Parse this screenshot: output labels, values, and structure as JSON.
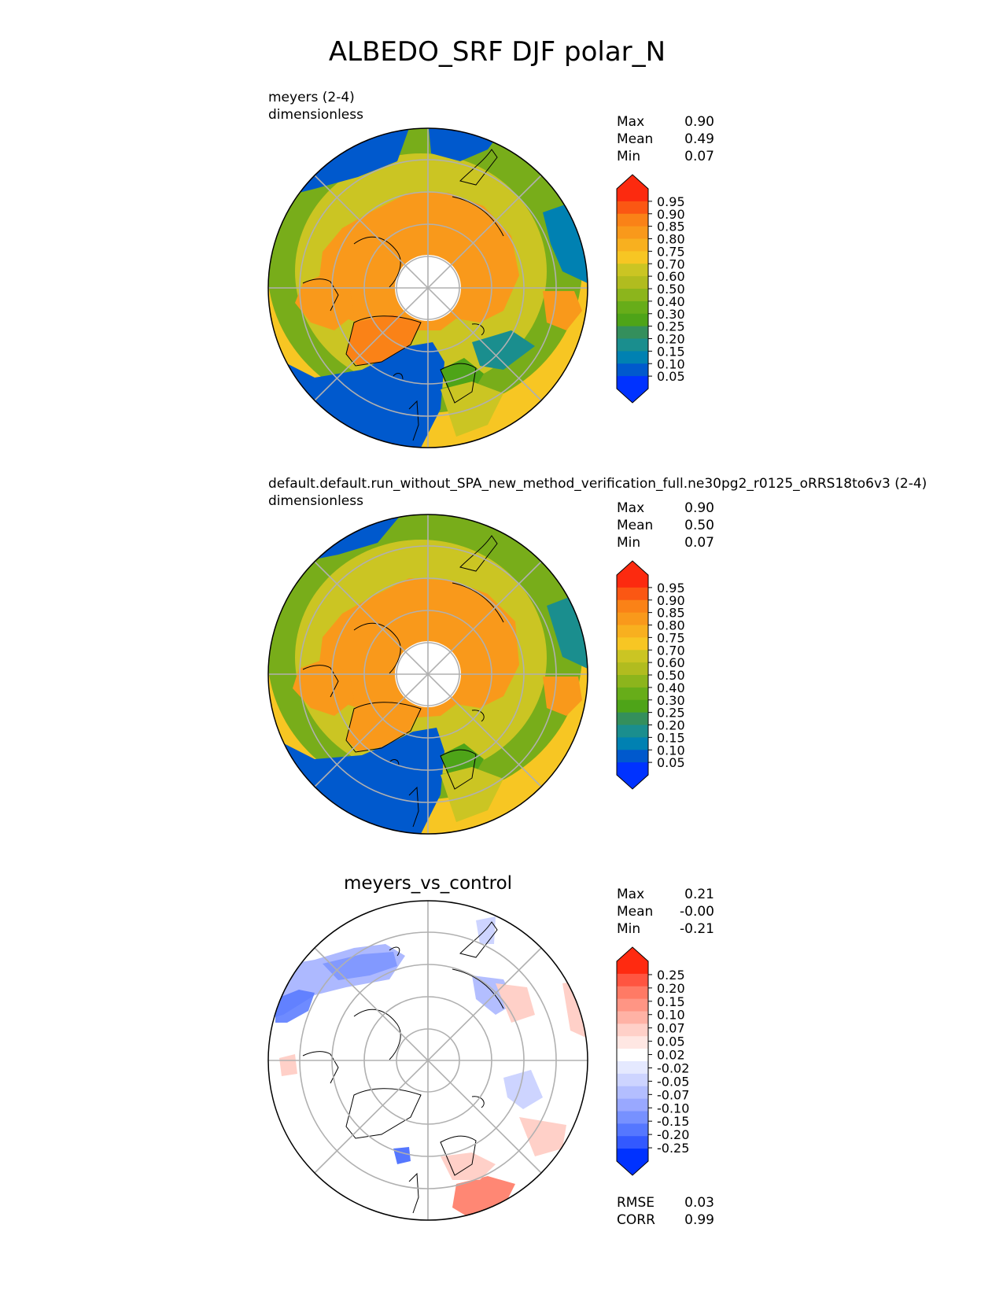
{
  "figure": {
    "title": "ALBEDO_SRF DJF polar_N"
  },
  "colors": {
    "seq": [
      "#0032ff",
      "#0059cd",
      "#0081b2",
      "#1a8e8e",
      "#348f5c",
      "#4ea418",
      "#67ad19",
      "#8cb51c",
      "#b1bc1f",
      "#cbc523",
      "#f7c623",
      "#f8b01f",
      "#f9991b",
      "#fa8217",
      "#fb5713",
      "#fc2a0f"
    ],
    "div": [
      "#0032ff",
      "#3359ff",
      "#5577ff",
      "#7791ff",
      "#99a8ff",
      "#b3beff",
      "#cdd4ff",
      "#e5e9ff",
      "#ffffff",
      "#ffe7e3",
      "#ffd0c8",
      "#ffb2a5",
      "#ff9584",
      "#ff7a65",
      "#ff5540",
      "#ff2a10"
    ],
    "coast": "#000000",
    "grid": "#b0b0b0"
  },
  "chart_data": [
    {
      "type": "polar-map",
      "id": "test",
      "title_line1": "meyers (2-4)",
      "title_line2": "dimensionless",
      "stats": [
        {
          "label": "Max",
          "value": "0.90"
        },
        {
          "label": "Mean",
          "value": "0.49"
        },
        {
          "label": "Min",
          "value": "0.07"
        }
      ],
      "colorbar": {
        "palette": "seq",
        "levels": [
          "0.95",
          "0.90",
          "0.85",
          "0.80",
          "0.75",
          "0.70",
          "0.60",
          "0.50",
          "0.40",
          "0.30",
          "0.25",
          "0.20",
          "0.15",
          "0.10",
          "0.05"
        ],
        "extend": "both"
      },
      "latitude_range": [
        50,
        90
      ],
      "projection": "north-polar-stereographic"
    },
    {
      "type": "polar-map",
      "id": "ref",
      "title_line1": "default.default.run_without_SPA_new_method_verification_full.ne30pg2_r0125_oRRS18to6v3 (2-4)",
      "title_line2": "dimensionless",
      "stats": [
        {
          "label": "Max",
          "value": "0.90"
        },
        {
          "label": "Mean",
          "value": "0.50"
        },
        {
          "label": "Min",
          "value": "0.07"
        }
      ],
      "colorbar": {
        "palette": "seq",
        "levels": [
          "0.95",
          "0.90",
          "0.85",
          "0.80",
          "0.75",
          "0.70",
          "0.60",
          "0.50",
          "0.40",
          "0.30",
          "0.25",
          "0.20",
          "0.15",
          "0.10",
          "0.05"
        ],
        "extend": "both"
      },
      "latitude_range": [
        50,
        90
      ],
      "projection": "north-polar-stereographic"
    },
    {
      "type": "polar-map",
      "id": "diff",
      "title_center": "meyers_vs_control",
      "stats": [
        {
          "label": "Max",
          "value": "0.21"
        },
        {
          "label": "Mean",
          "value": "-0.00"
        },
        {
          "label": "Min",
          "value": "-0.21"
        }
      ],
      "bottom_stats": [
        {
          "label": "RMSE",
          "value": "0.03"
        },
        {
          "label": "CORR",
          "value": "0.99"
        }
      ],
      "colorbar": {
        "palette": "div",
        "levels": [
          "0.25",
          "0.20",
          "0.15",
          "0.10",
          "0.07",
          "0.05",
          "0.02",
          "-0.02",
          "-0.05",
          "-0.07",
          "-0.10",
          "-0.15",
          "-0.20",
          "-0.25"
        ],
        "extend": "both"
      },
      "latitude_range": [
        50,
        90
      ],
      "projection": "north-polar-stereographic"
    }
  ]
}
